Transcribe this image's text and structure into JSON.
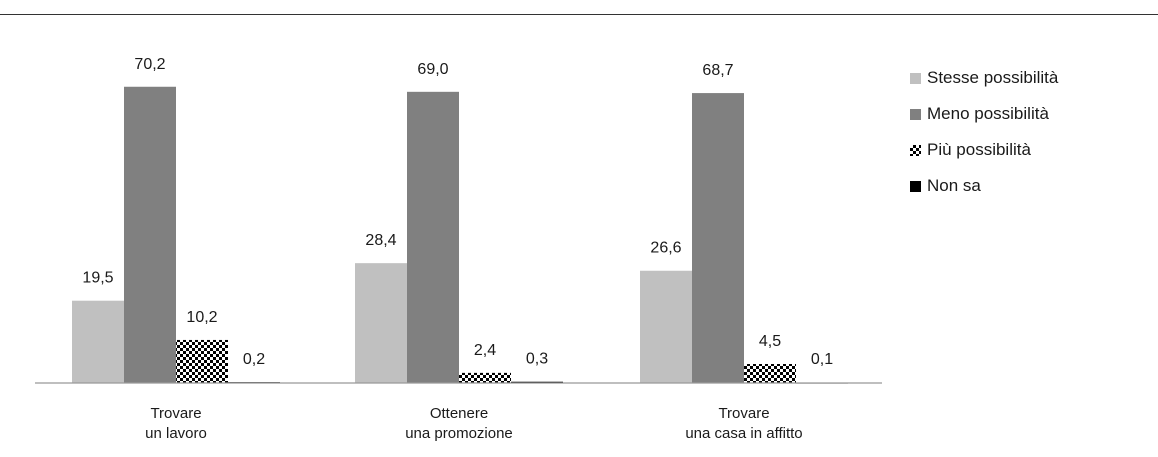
{
  "chart_data": {
    "type": "bar",
    "categories": [
      [
        "Trovare",
        "un lavoro"
      ],
      [
        "Ottenere",
        "una promozione"
      ],
      [
        "Trovare",
        "una casa in affitto"
      ]
    ],
    "series": [
      {
        "name": "Stesse possibilità",
        "values": [
          "19,5",
          "28,4",
          "26,6"
        ],
        "numeric": [
          19.5,
          28.4,
          26.6
        ],
        "color": "#c0c0c0",
        "pattern": "solid"
      },
      {
        "name": "Meno possibilità",
        "values": [
          "70,2",
          "69,0",
          "68,7"
        ],
        "numeric": [
          70.2,
          69.0,
          68.7
        ],
        "color": "#808080",
        "pattern": "solid"
      },
      {
        "name": "Più possibilità",
        "values": [
          "10,2",
          "2,4",
          "4,5"
        ],
        "numeric": [
          10.2,
          2.4,
          4.5
        ],
        "color": "#000000",
        "pattern": "checker"
      },
      {
        "name": "Non sa",
        "values": [
          "0,2",
          "0,3",
          "0,1"
        ],
        "numeric": [
          0.2,
          0.3,
          0.1
        ],
        "color": "#000000",
        "pattern": "solid"
      }
    ],
    "ylim": [
      0,
      75
    ],
    "grid": false,
    "legend_position": "right"
  }
}
